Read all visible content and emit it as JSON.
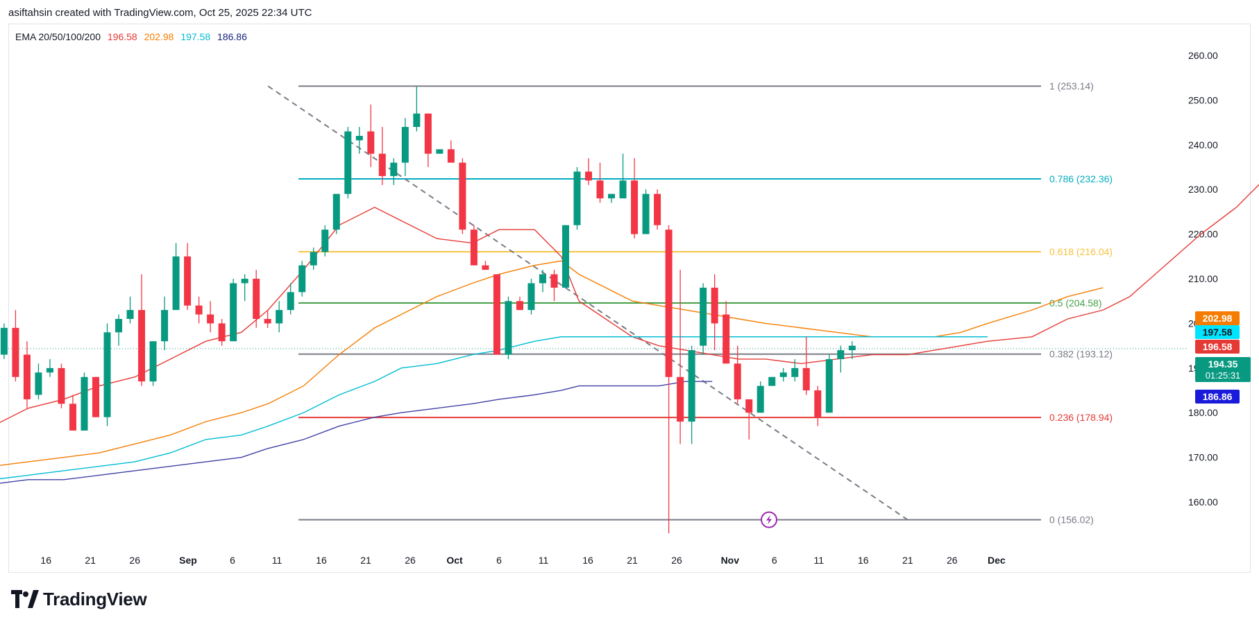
{
  "header": {
    "attribution": "asiftahsin created with TradingView.com, Oct 25, 2025 22:34 UTC"
  },
  "legend": {
    "name": "EMA 20/50/100/200",
    "values": [
      {
        "text": "196.58",
        "color": "#e53935"
      },
      {
        "text": "202.98",
        "color": "#f57c00"
      },
      {
        "text": "197.58",
        "color": "#00bcd4"
      },
      {
        "text": "186.86",
        "color": "#1a237e"
      }
    ]
  },
  "footer": {
    "brand": "TradingView"
  },
  "chart_data": {
    "type": "candlestick",
    "ylim": [
      151,
      267
    ],
    "y_ticks": [
      "160.00",
      "170.00",
      "180.00",
      "190.00",
      "200.00",
      "210.00",
      "220.00",
      "230.00",
      "240.00",
      "250.00",
      "260.00"
    ],
    "x_ticks": [
      {
        "label": "16",
        "day": -16
      },
      {
        "label": "21",
        "day": -11
      },
      {
        "label": "26",
        "day": -6
      },
      {
        "label": "Sep",
        "day": 0,
        "bold": true
      },
      {
        "label": "6",
        "day": 5
      },
      {
        "label": "11",
        "day": 10
      },
      {
        "label": "16",
        "day": 15
      },
      {
        "label": "21",
        "day": 20
      },
      {
        "label": "26",
        "day": 25
      },
      {
        "label": "Oct",
        "day": 30,
        "bold": true
      },
      {
        "label": "6",
        "day": 35
      },
      {
        "label": "11",
        "day": 40
      },
      {
        "label": "16",
        "day": 45
      },
      {
        "label": "21",
        "day": 50
      },
      {
        "label": "26",
        "day": 55
      },
      {
        "label": "Nov",
        "day": 61,
        "bold": true
      },
      {
        "label": "6",
        "day": 66
      },
      {
        "label": "11",
        "day": 71
      },
      {
        "label": "16",
        "day": 76
      },
      {
        "label": "21",
        "day": 81
      },
      {
        "label": "26",
        "day": 86
      },
      {
        "label": "Dec",
        "day": 91,
        "bold": true
      }
    ],
    "candles": [
      {
        "o": 175,
        "h": 193,
        "l": 174,
        "c": 193
      },
      {
        "o": 193,
        "h": 200,
        "l": 192,
        "c": 199
      },
      {
        "o": 199,
        "h": 203,
        "l": 187,
        "c": 188
      },
      {
        "o": 193,
        "h": 196,
        "l": 181,
        "c": 183
      },
      {
        "o": 184,
        "h": 191,
        "l": 183,
        "c": 189
      },
      {
        "o": 189,
        "h": 192,
        "l": 188,
        "c": 190
      },
      {
        "o": 190,
        "h": 191,
        "l": 181,
        "c": 182
      },
      {
        "o": 182,
        "h": 184,
        "l": 176,
        "c": 176
      },
      {
        "o": 176,
        "h": 189,
        "l": 176,
        "c": 188
      },
      {
        "o": 188,
        "h": 188,
        "l": 179,
        "c": 179
      },
      {
        "o": 179,
        "h": 200,
        "l": 177,
        "c": 198
      },
      {
        "o": 198,
        "h": 202,
        "l": 195,
        "c": 201
      },
      {
        "o": 201,
        "h": 206,
        "l": 200,
        "c": 203
      },
      {
        "o": 203,
        "h": 211,
        "l": 186,
        "c": 187
      },
      {
        "o": 187,
        "h": 196,
        "l": 186,
        "c": 196
      },
      {
        "o": 196,
        "h": 206,
        "l": 194,
        "c": 203
      },
      {
        "o": 203,
        "h": 218,
        "l": 203,
        "c": 215
      },
      {
        "o": 215,
        "h": 218,
        "l": 203,
        "c": 204
      },
      {
        "o": 204,
        "h": 206,
        "l": 200,
        "c": 202
      },
      {
        "o": 202,
        "h": 205,
        "l": 198,
        "c": 200
      },
      {
        "o": 200,
        "h": 201,
        "l": 195,
        "c": 196
      },
      {
        "o": 196,
        "h": 210,
        "l": 196,
        "c": 209
      },
      {
        "o": 209,
        "h": 211,
        "l": 205,
        "c": 210
      },
      {
        "o": 210,
        "h": 212,
        "l": 199,
        "c": 201
      },
      {
        "o": 201,
        "h": 203,
        "l": 199,
        "c": 200
      },
      {
        "o": 200,
        "h": 205,
        "l": 198,
        "c": 203
      },
      {
        "o": 203,
        "h": 209,
        "l": 202,
        "c": 207
      },
      {
        "o": 207,
        "h": 214,
        "l": 206,
        "c": 213
      },
      {
        "o": 213,
        "h": 217,
        "l": 212,
        "c": 216
      },
      {
        "o": 216,
        "h": 222,
        "l": 215,
        "c": 221
      },
      {
        "o": 221,
        "h": 229,
        "l": 220,
        "c": 229
      },
      {
        "o": 229,
        "h": 244,
        "l": 228,
        "c": 243
      },
      {
        "o": 241,
        "h": 244,
        "l": 238,
        "c": 242
      },
      {
        "o": 243,
        "h": 249,
        "l": 235,
        "c": 238
      },
      {
        "o": 238,
        "h": 244,
        "l": 231,
        "c": 233
      },
      {
        "o": 233,
        "h": 237,
        "l": 231,
        "c": 236
      },
      {
        "o": 236,
        "h": 246,
        "l": 233,
        "c": 244
      },
      {
        "o": 244,
        "h": 253,
        "l": 243,
        "c": 247
      },
      {
        "o": 247,
        "h": 247,
        "l": 235,
        "c": 238
      },
      {
        "o": 238,
        "h": 239,
        "l": 238,
        "c": 239
      },
      {
        "o": 239,
        "h": 241,
        "l": 236,
        "c": 236
      },
      {
        "o": 236,
        "h": 237,
        "l": 220,
        "c": 221
      },
      {
        "o": 221,
        "h": 222,
        "l": 213,
        "c": 213
      },
      {
        "o": 213,
        "h": 214,
        "l": 212,
        "c": 212
      },
      {
        "o": 211,
        "h": 211,
        "l": 193,
        "c": 193
      },
      {
        "o": 193,
        "h": 206,
        "l": 192,
        "c": 205
      },
      {
        "o": 205,
        "h": 206,
        "l": 203,
        "c": 203
      },
      {
        "o": 203,
        "h": 210,
        "l": 202,
        "c": 209
      },
      {
        "o": 209,
        "h": 212,
        "l": 207,
        "c": 211
      },
      {
        "o": 211,
        "h": 212,
        "l": 205,
        "c": 208
      },
      {
        "o": 208,
        "h": 222,
        "l": 208,
        "c": 222
      },
      {
        "o": 222,
        "h": 235,
        "l": 221,
        "c": 234
      },
      {
        "o": 234,
        "h": 237,
        "l": 231,
        "c": 232
      },
      {
        "o": 232,
        "h": 236,
        "l": 227,
        "c": 228
      },
      {
        "o": 228,
        "h": 229,
        "l": 227,
        "c": 229
      },
      {
        "o": 228,
        "h": 238,
        "l": 228,
        "c": 232
      },
      {
        "o": 232,
        "h": 237,
        "l": 219,
        "c": 220
      },
      {
        "o": 220,
        "h": 230,
        "l": 220,
        "c": 229
      },
      {
        "o": 229,
        "h": 230,
        "l": 221,
        "c": 222
      },
      {
        "o": 221,
        "h": 222,
        "l": 153,
        "c": 188
      },
      {
        "o": 188,
        "h": 212,
        "l": 173,
        "c": 178
      },
      {
        "o": 178,
        "h": 195,
        "l": 173,
        "c": 194
      },
      {
        "o": 195,
        "h": 209,
        "l": 193,
        "c": 208
      },
      {
        "o": 208,
        "h": 211,
        "l": 194,
        "c": 200
      },
      {
        "o": 202,
        "h": 205,
        "l": 191,
        "c": 191
      },
      {
        "o": 191,
        "h": 195,
        "l": 182,
        "c": 183
      },
      {
        "o": 183,
        "h": 183,
        "l": 174,
        "c": 180
      },
      {
        "o": 180,
        "h": 187,
        "l": 180,
        "c": 186
      },
      {
        "o": 186,
        "h": 188,
        "l": 186,
        "c": 188
      },
      {
        "o": 188,
        "h": 190,
        "l": 187,
        "c": 189
      },
      {
        "o": 188,
        "h": 192,
        "l": 187,
        "c": 190
      },
      {
        "o": 190,
        "h": 197,
        "l": 184,
        "c": 185
      },
      {
        "o": 185,
        "h": 186,
        "l": 177,
        "c": 179
      },
      {
        "o": 180,
        "h": 193,
        "l": 180,
        "c": 192
      },
      {
        "o": 192,
        "h": 195,
        "l": 189,
        "c": 194
      },
      {
        "o": 194,
        "h": 196,
        "l": 192,
        "c": 195
      }
    ],
    "ema": [
      {
        "name": "EMA 20",
        "color": "#e53935",
        "points": [
          [
            -22,
            177
          ],
          [
            -18,
            181
          ],
          [
            -14,
            183
          ],
          [
            -10,
            186
          ],
          [
            -6,
            188
          ],
          [
            -2,
            192
          ],
          [
            2,
            196
          ],
          [
            6,
            198
          ],
          [
            9,
            203
          ],
          [
            13,
            212
          ],
          [
            17,
            222
          ],
          [
            21,
            226
          ],
          [
            24,
            223
          ],
          [
            28,
            219
          ],
          [
            32,
            218
          ],
          [
            35,
            221
          ],
          [
            39,
            221
          ],
          [
            42,
            215
          ],
          [
            44,
            205
          ],
          [
            47,
            201
          ],
          [
            50,
            197
          ],
          [
            53,
            195
          ],
          [
            56,
            194
          ],
          [
            59,
            193
          ],
          [
            62,
            192
          ],
          [
            65,
            192
          ],
          [
            69,
            191
          ],
          [
            73,
            192
          ],
          [
            77,
            193
          ],
          [
            81,
            193
          ],
          [
            84,
            194
          ],
          [
            87,
            195
          ],
          [
            90,
            196
          ],
          [
            95,
            197
          ],
          [
            99,
            201
          ],
          [
            103,
            203
          ],
          [
            106,
            206
          ],
          [
            110,
            213
          ],
          [
            114,
            220
          ],
          [
            118,
            226
          ],
          [
            122,
            234
          ],
          [
            126,
            238
          ],
          [
            129,
            241
          ],
          [
            133,
            243
          ],
          [
            136,
            244
          ],
          [
            140,
            245
          ],
          [
            143,
            247
          ],
          [
            147,
            249
          ]
        ]
      },
      {
        "name": "EMA 50",
        "color": "#f57c00",
        "points": [
          [
            -22,
            168
          ],
          [
            -18,
            169
          ],
          [
            -14,
            170
          ],
          [
            -10,
            171
          ],
          [
            -6,
            173
          ],
          [
            -2,
            175
          ],
          [
            2,
            178
          ],
          [
            6,
            180
          ],
          [
            9,
            182
          ],
          [
            13,
            186
          ],
          [
            17,
            193
          ],
          [
            21,
            199
          ],
          [
            24,
            202
          ],
          [
            28,
            206
          ],
          [
            32,
            209
          ],
          [
            35,
            211
          ],
          [
            39,
            213
          ],
          [
            42,
            214
          ],
          [
            44,
            211
          ],
          [
            47,
            208
          ],
          [
            50,
            205
          ],
          [
            53,
            204
          ],
          [
            56,
            203
          ],
          [
            59,
            202
          ],
          [
            62,
            201
          ],
          [
            65,
            200
          ],
          [
            69,
            199
          ],
          [
            73,
            198
          ],
          [
            77,
            197
          ],
          [
            81,
            197
          ],
          [
            84,
            197
          ],
          [
            87,
            198
          ],
          [
            90,
            200
          ],
          [
            95,
            203
          ],
          [
            99,
            206
          ],
          [
            103,
            208
          ]
        ]
      },
      {
        "name": "EMA 100",
        "color": "#00bcd4",
        "points": [
          [
            -22,
            165
          ],
          [
            -18,
            166
          ],
          [
            -14,
            167
          ],
          [
            -10,
            168
          ],
          [
            -6,
            169
          ],
          [
            -2,
            171
          ],
          [
            2,
            174
          ],
          [
            6,
            175
          ],
          [
            9,
            177
          ],
          [
            13,
            180
          ],
          [
            17,
            184
          ],
          [
            21,
            187
          ],
          [
            24,
            190
          ],
          [
            28,
            191
          ],
          [
            32,
            193
          ],
          [
            35,
            194
          ],
          [
            39,
            196
          ],
          [
            42,
            197
          ],
          [
            44,
            197
          ],
          [
            47,
            197
          ],
          [
            50,
            197
          ],
          [
            53,
            197
          ],
          [
            56,
            197
          ],
          [
            59,
            197
          ],
          [
            62,
            197
          ],
          [
            65,
            197
          ],
          [
            69,
            197
          ],
          [
            73,
            197
          ],
          [
            77,
            197
          ],
          [
            81,
            197
          ],
          [
            84,
            197
          ],
          [
            87,
            197
          ],
          [
            90,
            197
          ]
        ]
      },
      {
        "name": "EMA 200",
        "color": "#3f3fa6",
        "points": [
          [
            -22,
            164
          ],
          [
            -18,
            165
          ],
          [
            -14,
            165
          ],
          [
            -10,
            166
          ],
          [
            -6,
            167
          ],
          [
            -2,
            168
          ],
          [
            2,
            169
          ],
          [
            6,
            170
          ],
          [
            9,
            172
          ],
          [
            13,
            174
          ],
          [
            17,
            177
          ],
          [
            21,
            179
          ],
          [
            24,
            180
          ],
          [
            28,
            181
          ],
          [
            32,
            182
          ],
          [
            35,
            183
          ],
          [
            39,
            184
          ],
          [
            42,
            185
          ],
          [
            44,
            186
          ],
          [
            47,
            186
          ],
          [
            50,
            186
          ],
          [
            53,
            186
          ],
          [
            56,
            187
          ],
          [
            59,
            187
          ]
        ]
      }
    ],
    "fib_levels": [
      {
        "label": "1 (253.14)",
        "value": 253.14,
        "color": "#787b86"
      },
      {
        "label": "0.786 (232.36)",
        "value": 232.36,
        "color": "#00acc1"
      },
      {
        "label": "0.618 (216.04)",
        "value": 216.04,
        "color": "#f5c242"
      },
      {
        "label": "0.5 (204.58)",
        "value": 204.58,
        "color": "#43a047"
      },
      {
        "label": "0.382 (193.12)",
        "value": 193.12,
        "color": "#787b86"
      },
      {
        "label": "0.236 (178.94)",
        "value": 178.94,
        "color": "#e53935"
      },
      {
        "label": "0 (156.02)",
        "value": 156.02,
        "color": "#787b86"
      }
    ],
    "trendline": {
      "from": [
        9,
        253.14
      ],
      "to": [
        81,
        156.02
      ]
    },
    "price_tags": [
      {
        "text": "202.98",
        "value": 202.98,
        "bg": "#f57c00",
        "fg": "#ffffff"
      },
      {
        "text": "197.58",
        "value": 197.58,
        "bg": "#00e5ff",
        "fg": "#131722"
      },
      {
        "text": "196.58",
        "value": 196.58,
        "bg": "#e53935",
        "fg": "#ffffff"
      },
      {
        "text": "186.86",
        "value": 186.86,
        "bg": "#1a1adb",
        "fg": "#ffffff"
      }
    ],
    "last_price": {
      "price": "194.35",
      "countdown": "01:25:31",
      "value": 194.35,
      "bg": "#089981",
      "fg": "#ffffff"
    },
    "colors": {
      "up": "#089981",
      "down": "#f23645"
    }
  }
}
